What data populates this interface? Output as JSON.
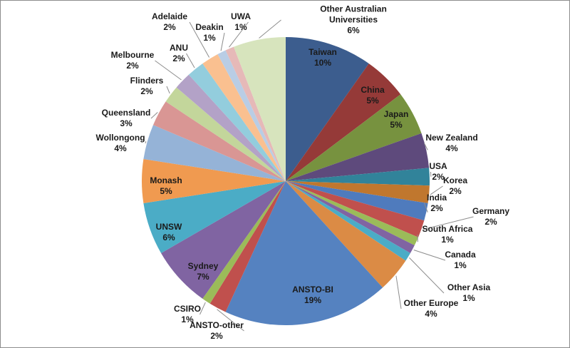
{
  "chart_data": {
    "type": "pie",
    "title": "",
    "start_angle": "12 o'clock, clockwise",
    "legend": "none",
    "slices": [
      {
        "label": "Taiwan",
        "value": 10,
        "pct": "10%",
        "color": "#3C5D8E"
      },
      {
        "label": "China",
        "value": 5,
        "pct": "5%",
        "color": "#953A38"
      },
      {
        "label": "Japan",
        "value": 5,
        "pct": "5%",
        "color": "#77923F"
      },
      {
        "label": "New Zealand",
        "value": 4,
        "pct": "4%",
        "color": "#5E4A7C"
      },
      {
        "label": "USA",
        "value": 2,
        "pct": "2%",
        "color": "#31839A"
      },
      {
        "label": "Korea",
        "value": 2,
        "pct": "2%",
        "color": "#C0772E"
      },
      {
        "label": "India",
        "value": 2,
        "pct": "2%",
        "color": "#4F7BBD"
      },
      {
        "label": "Germany",
        "value": 2,
        "pct": "2%",
        "color": "#C0504D"
      },
      {
        "label": "South Africa",
        "value": 1,
        "pct": "1%",
        "color": "#9BBB59"
      },
      {
        "label": "Canada",
        "value": 1,
        "pct": "1%",
        "color": "#8064A2"
      },
      {
        "label": "Other Asia",
        "value": 1,
        "pct": "1%",
        "color": "#4BACC6"
      },
      {
        "label": "Other Europe",
        "value": 4,
        "pct": "4%",
        "color": "#DB8B45"
      },
      {
        "label": "ANSTO-BI",
        "value": 19,
        "pct": "19%",
        "color": "#5582C0"
      },
      {
        "label": "ANSTO-other",
        "value": 2,
        "pct": "2%",
        "color": "#C0504D"
      },
      {
        "label": "CSIRO",
        "value": 1,
        "pct": "1%",
        "color": "#9BBB59"
      },
      {
        "label": "Sydney",
        "value": 7,
        "pct": "7%",
        "color": "#8064A2"
      },
      {
        "label": "UNSW",
        "value": 6,
        "pct": "6%",
        "color": "#4BACC6"
      },
      {
        "label": "Monash",
        "value": 5,
        "pct": "5%",
        "color": "#F09A50"
      },
      {
        "label": "Wollongong",
        "value": 4,
        "pct": "4%",
        "color": "#95B3D7"
      },
      {
        "label": "Queensland",
        "value": 3,
        "pct": "3%",
        "color": "#D99694"
      },
      {
        "label": "Flinders",
        "value": 2,
        "pct": "2%",
        "color": "#C3D69B"
      },
      {
        "label": "Melbourne",
        "value": 2,
        "pct": "2%",
        "color": "#B3A2C7"
      },
      {
        "label": "ANU",
        "value": 2,
        "pct": "2%",
        "color": "#93CDDD"
      },
      {
        "label": "Adelaide",
        "value": 2,
        "pct": "2%",
        "color": "#FAC090"
      },
      {
        "label": "Deakin",
        "value": 1,
        "pct": "1%",
        "color": "#B9CDE5"
      },
      {
        "label": "UWA",
        "value": 1,
        "pct": "1%",
        "color": "#E6B9B8"
      },
      {
        "label": "Other Australian Universities",
        "value": 6,
        "pct": "6%",
        "color": "#D7E4BD"
      }
    ]
  }
}
